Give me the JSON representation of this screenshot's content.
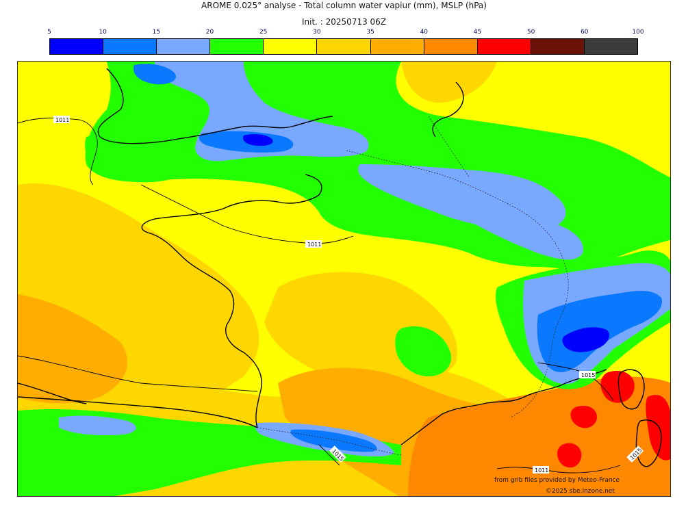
{
  "header": {
    "title": "AROME 0.025° analyse - Total column water vapiur (mm), MSLP (hPa)",
    "init": "Init. : 20250713 06Z"
  },
  "colorbar": {
    "ticks": [
      "5",
      "10",
      "15",
      "20",
      "25",
      "30",
      "35",
      "40",
      "45",
      "50",
      "60",
      "100"
    ],
    "colors": [
      "#0000ff",
      "#0a78ff",
      "#78a8ff",
      "#22ff00",
      "#ffff00",
      "#ffd700",
      "#ffae00",
      "#ff8800",
      "#ff0000",
      "#6b1208",
      "#3c3c3c"
    ]
  },
  "isobars": {
    "labels": [
      "1011",
      "1011",
      "1015",
      "1015",
      "1015",
      "1011",
      "1015"
    ]
  },
  "credits": {
    "line1": "from grib files provided by Meteo-France",
    "line2": "©2025 sbe.inzone.net"
  }
}
